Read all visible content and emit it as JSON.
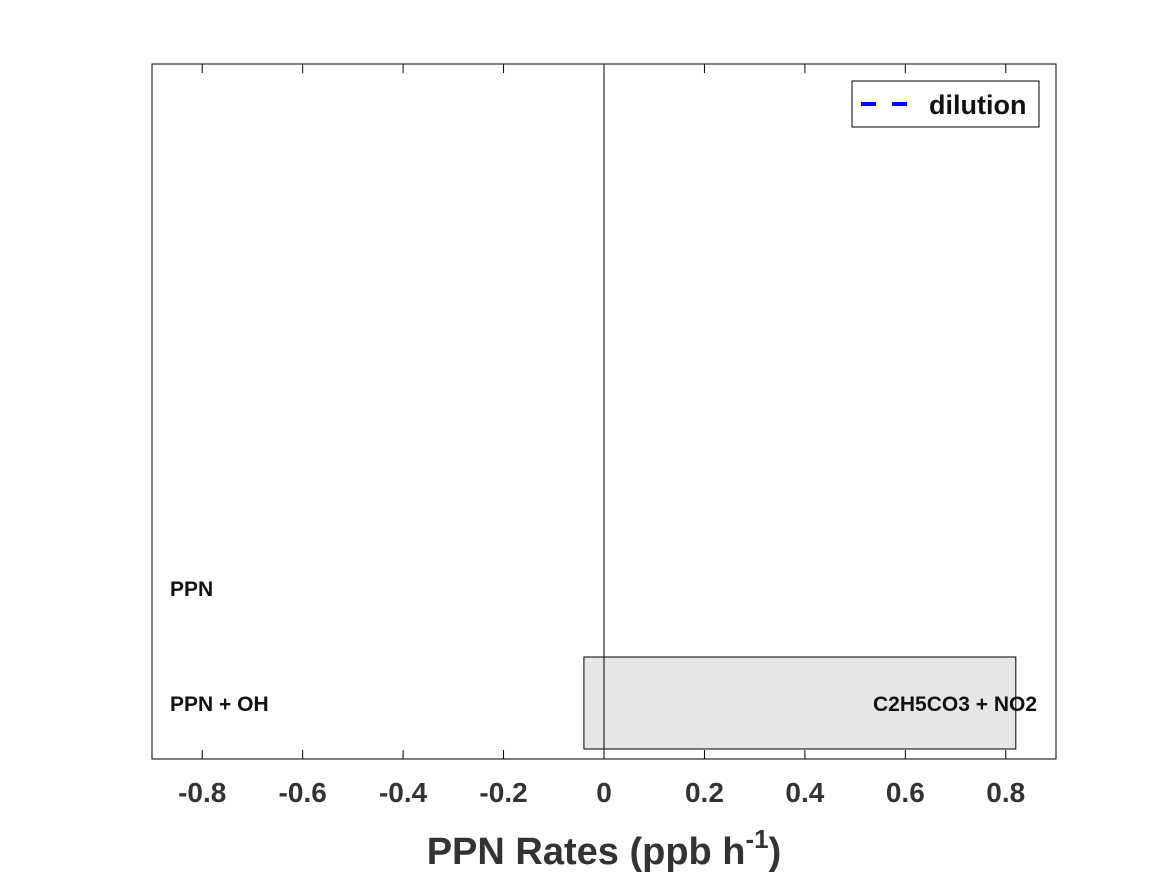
{
  "chart_data": {
    "type": "bar",
    "orientation": "horizontal",
    "stacked": true,
    "xlabel_prefix": "PPN Rates (ppb h",
    "xlabel_sup": "-1",
    "xlabel_suffix": ")",
    "xlim": [
      -0.9,
      0.9
    ],
    "xticks": [
      -0.8,
      -0.6,
      -0.4,
      -0.2,
      0,
      0.2,
      0.4,
      0.6,
      0.8
    ],
    "xtick_labels": [
      "-0.8",
      "-0.6",
      "-0.4",
      "-0.2",
      "0",
      "0.2",
      "0.4",
      "0.6",
      "0.8"
    ],
    "grid": false,
    "legend": {
      "placement": "top-right",
      "entries": [
        {
          "name": "dilution",
          "style": "dashed-line",
          "color": "#0000ff"
        }
      ]
    },
    "bars": [
      {
        "position": 1,
        "x_start": -0.04,
        "x_end": 0.82,
        "color": "#e6e6e6",
        "stroke": "#000000"
      }
    ],
    "labels": {
      "left": [
        {
          "position": 1,
          "text": "PPN + OH"
        },
        {
          "position": 2,
          "text": "PPN"
        }
      ],
      "right": [
        {
          "position": 1,
          "text": "C2H5CO3 + NO2"
        }
      ]
    },
    "zero_line": true
  }
}
